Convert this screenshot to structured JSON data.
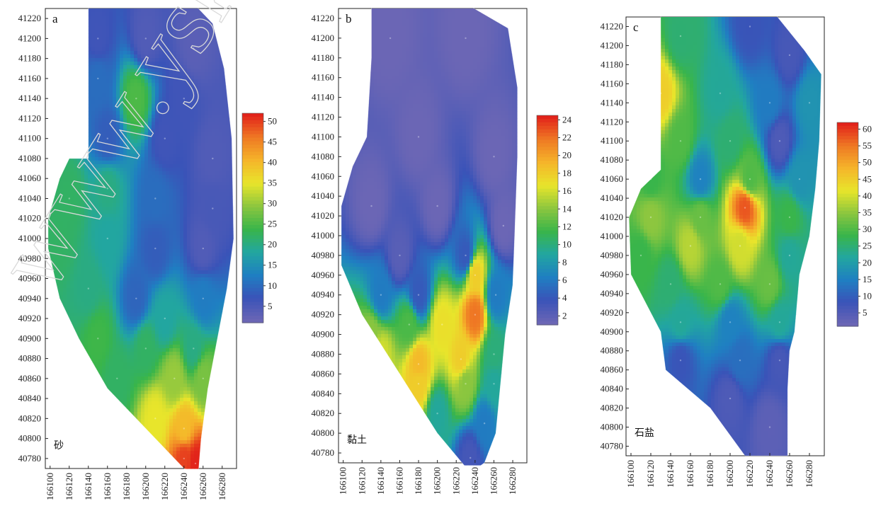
{
  "watermark": "www.yskw.ac",
  "colormap": [
    "#6b66b5",
    "#3a53b8",
    "#1f7fc2",
    "#22a6a0",
    "#39b54a",
    "#8cc63f",
    "#e8e52b",
    "#f5b52a",
    "#ef7a24",
    "#e2231a"
  ],
  "y_ticks": [
    41220,
    41200,
    41180,
    41160,
    41140,
    41120,
    41100,
    41080,
    41060,
    41040,
    41020,
    41000,
    40980,
    40960,
    40940,
    40920,
    40900,
    40880,
    40860,
    40840,
    40820,
    40800,
    40780
  ],
  "x_ticks": [
    166100,
    166120,
    166140,
    166160,
    166180,
    166200,
    166220,
    166240,
    166260,
    166280
  ],
  "chart_data": [
    {
      "type": "heatmap",
      "panel_label": "a",
      "material": "砂",
      "colorbar": {
        "ticks": [
          50,
          45,
          40,
          35,
          30,
          25,
          20,
          15,
          10,
          5
        ],
        "range": [
          1,
          52
        ]
      },
      "xlim": [
        166095,
        166295
      ],
      "ylim": [
        40770,
        41230
      ],
      "boundary": [
        [
          166140,
          41235
        ],
        [
          166250,
          41235
        ],
        [
          166270,
          41215
        ],
        [
          166282,
          41170
        ],
        [
          166290,
          41100
        ],
        [
          166292,
          41000
        ],
        [
          166285,
          40950
        ],
        [
          166275,
          40900
        ],
        [
          166265,
          40850
        ],
        [
          166258,
          40800
        ],
        [
          166255,
          40765
        ],
        [
          166240,
          40770
        ],
        [
          166200,
          40810
        ],
        [
          166160,
          40850
        ],
        [
          166130,
          40900
        ],
        [
          166110,
          40940
        ],
        [
          166098,
          40990
        ],
        [
          166098,
          41020
        ],
        [
          166110,
          41060
        ],
        [
          166120,
          41080
        ],
        [
          166140,
          41080
        ]
      ],
      "samples": [
        {
          "x": 166150,
          "y": 41200,
          "v": 6
        },
        {
          "x": 166200,
          "y": 41200,
          "v": 4
        },
        {
          "x": 166250,
          "y": 41190,
          "v": 3
        },
        {
          "x": 166150,
          "y": 41160,
          "v": 10
        },
        {
          "x": 166190,
          "y": 41140,
          "v": 25
        },
        {
          "x": 166240,
          "y": 41140,
          "v": 6
        },
        {
          "x": 166160,
          "y": 41100,
          "v": 8
        },
        {
          "x": 166220,
          "y": 41100,
          "v": 6
        },
        {
          "x": 166270,
          "y": 41080,
          "v": 4
        },
        {
          "x": 166120,
          "y": 41040,
          "v": 22
        },
        {
          "x": 166160,
          "y": 41050,
          "v": 20
        },
        {
          "x": 166210,
          "y": 41040,
          "v": 10
        },
        {
          "x": 166270,
          "y": 41030,
          "v": 5
        },
        {
          "x": 166110,
          "y": 41000,
          "v": 22
        },
        {
          "x": 166160,
          "y": 41000,
          "v": 18
        },
        {
          "x": 166210,
          "y": 40990,
          "v": 8
        },
        {
          "x": 166260,
          "y": 40990,
          "v": 4
        },
        {
          "x": 166140,
          "y": 40950,
          "v": 20
        },
        {
          "x": 166190,
          "y": 40940,
          "v": 9
        },
        {
          "x": 166220,
          "y": 40920,
          "v": 18
        },
        {
          "x": 166260,
          "y": 40940,
          "v": 12
        },
        {
          "x": 166150,
          "y": 40900,
          "v": 24
        },
        {
          "x": 166200,
          "y": 40890,
          "v": 22
        },
        {
          "x": 166250,
          "y": 40890,
          "v": 20
        },
        {
          "x": 166170,
          "y": 40860,
          "v": 22
        },
        {
          "x": 166230,
          "y": 40860,
          "v": 30
        },
        {
          "x": 166260,
          "y": 40860,
          "v": 28
        },
        {
          "x": 166210,
          "y": 40820,
          "v": 35
        },
        {
          "x": 166240,
          "y": 40810,
          "v": 40
        },
        {
          "x": 166240,
          "y": 40780,
          "v": 50
        },
        {
          "x": 166252,
          "y": 40775,
          "v": 52
        }
      ]
    },
    {
      "type": "heatmap",
      "panel_label": "b",
      "material": "黏土",
      "colorbar": {
        "ticks": [
          24,
          22,
          20,
          18,
          16,
          14,
          12,
          10,
          8,
          6,
          4,
          2
        ],
        "range": [
          1,
          24.5
        ]
      },
      "xlim": [
        166095,
        166295
      ],
      "ylim": [
        40770,
        41230
      ],
      "boundary": [
        [
          166130,
          41235
        ],
        [
          166230,
          41235
        ],
        [
          166275,
          41210
        ],
        [
          166285,
          41150
        ],
        [
          166285,
          41080
        ],
        [
          166282,
          41000
        ],
        [
          166280,
          40950
        ],
        [
          166272,
          40900
        ],
        [
          166268,
          40860
        ],
        [
          166262,
          40800
        ],
        [
          166250,
          40770
        ],
        [
          166235,
          40760
        ],
        [
          166200,
          40800
        ],
        [
          166160,
          40860
        ],
        [
          166120,
          40920
        ],
        [
          166098,
          40970
        ],
        [
          166098,
          41030
        ],
        [
          166110,
          41070
        ],
        [
          166125,
          41100
        ],
        [
          166130,
          41180
        ]
      ],
      "samples": [
        {
          "x": 166150,
          "y": 41200,
          "v": 1
        },
        {
          "x": 166230,
          "y": 41200,
          "v": 1
        },
        {
          "x": 166180,
          "y": 41100,
          "v": 1
        },
        {
          "x": 166260,
          "y": 41080,
          "v": 1
        },
        {
          "x": 166130,
          "y": 41030,
          "v": 1
        },
        {
          "x": 166200,
          "y": 41030,
          "v": 1
        },
        {
          "x": 166270,
          "y": 41010,
          "v": 1
        },
        {
          "x": 166160,
          "y": 40980,
          "v": 2
        },
        {
          "x": 166230,
          "y": 40980,
          "v": 4
        },
        {
          "x": 166140,
          "y": 40940,
          "v": 6
        },
        {
          "x": 166180,
          "y": 40940,
          "v": 4
        },
        {
          "x": 166240,
          "y": 40960,
          "v": 18
        },
        {
          "x": 166262,
          "y": 40940,
          "v": 6
        },
        {
          "x": 166130,
          "y": 40900,
          "v": 14
        },
        {
          "x": 166170,
          "y": 40910,
          "v": 12
        },
        {
          "x": 166205,
          "y": 40910,
          "v": 17
        },
        {
          "x": 166240,
          "y": 40920,
          "v": 22
        },
        {
          "x": 166140,
          "y": 40880,
          "v": 16
        },
        {
          "x": 166180,
          "y": 40870,
          "v": 19
        },
        {
          "x": 166225,
          "y": 40875,
          "v": 18
        },
        {
          "x": 166260,
          "y": 40880,
          "v": 10
        },
        {
          "x": 166180,
          "y": 40850,
          "v": 18
        },
        {
          "x": 166230,
          "y": 40850,
          "v": 14
        },
        {
          "x": 166260,
          "y": 40850,
          "v": 9
        },
        {
          "x": 166200,
          "y": 40820,
          "v": 9
        },
        {
          "x": 166250,
          "y": 40810,
          "v": 6
        },
        {
          "x": 166235,
          "y": 40775,
          "v": 3
        }
      ]
    },
    {
      "type": "heatmap",
      "panel_label": "c",
      "material": "石盐",
      "colorbar": {
        "ticks": [
          60,
          55,
          50,
          45,
          40,
          35,
          30,
          25,
          20,
          15,
          10,
          5
        ],
        "range": [
          1,
          62
        ]
      },
      "xlim": [
        166095,
        166295
      ],
      "ylim": [
        40770,
        41230
      ],
      "boundary": [
        [
          166130,
          41240
        ],
        [
          166240,
          41240
        ],
        [
          166275,
          41195
        ],
        [
          166292,
          41170
        ],
        [
          166290,
          41100
        ],
        [
          166286,
          41050
        ],
        [
          166280,
          41000
        ],
        [
          166270,
          40960
        ],
        [
          166265,
          40900
        ],
        [
          166260,
          40880
        ],
        [
          166258,
          40840
        ],
        [
          166258,
          40770
        ],
        [
          166215,
          40770
        ],
        [
          166180,
          40820
        ],
        [
          166135,
          40860
        ],
        [
          166130,
          40900
        ],
        [
          166100,
          40960
        ],
        [
          166098,
          41020
        ],
        [
          166110,
          41050
        ],
        [
          166130,
          41070
        ]
      ],
      "samples": [
        {
          "x": 166150,
          "y": 41210,
          "v": 25
        },
        {
          "x": 166220,
          "y": 41220,
          "v": 8
        },
        {
          "x": 166260,
          "y": 41190,
          "v": 6
        },
        {
          "x": 166130,
          "y": 41150,
          "v": 45
        },
        {
          "x": 166190,
          "y": 41150,
          "v": 22
        },
        {
          "x": 166240,
          "y": 41140,
          "v": 14
        },
        {
          "x": 166280,
          "y": 41140,
          "v": 18
        },
        {
          "x": 166150,
          "y": 41100,
          "v": 30
        },
        {
          "x": 166200,
          "y": 41100,
          "v": 25
        },
        {
          "x": 166250,
          "y": 41100,
          "v": 5
        },
        {
          "x": 166120,
          "y": 41060,
          "v": 28
        },
        {
          "x": 166170,
          "y": 41060,
          "v": 15
        },
        {
          "x": 166220,
          "y": 41060,
          "v": 30
        },
        {
          "x": 166270,
          "y": 41060,
          "v": 18
        },
        {
          "x": 166120,
          "y": 41020,
          "v": 35
        },
        {
          "x": 166170,
          "y": 41020,
          "v": 32
        },
        {
          "x": 166215,
          "y": 41030,
          "v": 58
        },
        {
          "x": 166260,
          "y": 41020,
          "v": 28
        },
        {
          "x": 166110,
          "y": 40980,
          "v": 28
        },
        {
          "x": 166160,
          "y": 40990,
          "v": 38
        },
        {
          "x": 166210,
          "y": 40990,
          "v": 40
        },
        {
          "x": 166260,
          "y": 40980,
          "v": 22
        },
        {
          "x": 166140,
          "y": 40950,
          "v": 25
        },
        {
          "x": 166190,
          "y": 40950,
          "v": 30
        },
        {
          "x": 166240,
          "y": 40950,
          "v": 32
        },
        {
          "x": 166150,
          "y": 40910,
          "v": 22
        },
        {
          "x": 166200,
          "y": 40910,
          "v": 15
        },
        {
          "x": 166250,
          "y": 40910,
          "v": 22
        },
        {
          "x": 166150,
          "y": 40870,
          "v": 8
        },
        {
          "x": 166210,
          "y": 40870,
          "v": 12
        },
        {
          "x": 166250,
          "y": 40870,
          "v": 6
        },
        {
          "x": 166200,
          "y": 40830,
          "v": 5
        },
        {
          "x": 166240,
          "y": 40800,
          "v": 3
        }
      ]
    }
  ]
}
